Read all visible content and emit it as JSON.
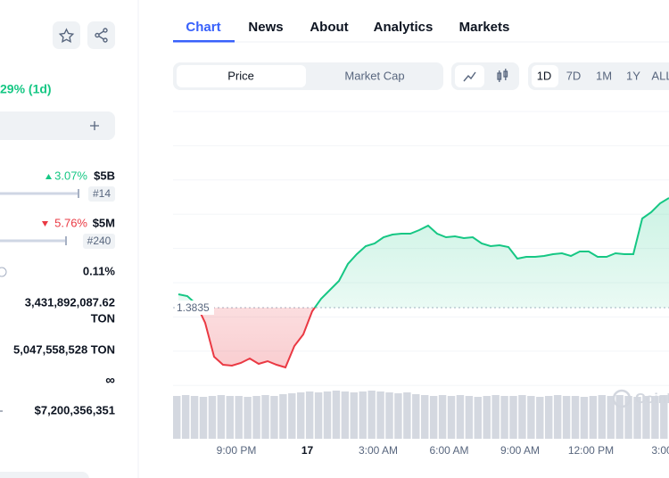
{
  "sidebar": {
    "change_1d": "29% (1d)",
    "rows": [
      {
        "change": "3.07%",
        "value": "$5B",
        "rank": "#14"
      },
      {
        "change": "5.76%",
        "value": "$5M",
        "rank": "#240"
      }
    ],
    "stats": [
      "0.11%",
      "3,431,892,087.62",
      "TON",
      "5,047,558,528 TON",
      "∞",
      "$7,200,356,351"
    ]
  },
  "tabs": [
    "Chart",
    "News",
    "About",
    "Analytics",
    "Markets"
  ],
  "controls": {
    "metric": [
      "Price",
      "Market Cap"
    ],
    "ranges": [
      "1D",
      "7D",
      "1M",
      "1Y",
      "ALL"
    ]
  },
  "chart_data": {
    "type": "line",
    "color": "#16c784",
    "down_color": "#ea3943",
    "volume_color": "#d4d8e0",
    "xticks": [
      "9:00 PM",
      "17",
      "3:00 AM",
      "6:00 AM",
      "9:00 AM",
      "12:00 PM",
      "3:00"
    ],
    "baseline": 1.3835,
    "ylim": [
      1.3541,
      1.4275
    ],
    "y2lim": [
      0,
      60
    ],
    "watermark": "CoinMarketCap",
    "values": [
      1.3865,
      1.3861,
      1.3843,
      1.3801,
      1.3725,
      1.3707,
      1.3705,
      1.3711,
      1.3721,
      1.3709,
      1.3715,
      1.3707,
      1.3701,
      1.3749,
      1.3775,
      1.3827,
      1.3855,
      1.3875,
      1.3895,
      1.3933,
      1.3955,
      1.3973,
      1.3979,
      1.3993,
      1.3999,
      1.4001,
      1.4001,
      1.4009,
      1.4019,
      1.4001,
      1.3993,
      1.3995,
      1.3991,
      1.3993,
      1.3979,
      1.3973,
      1.3975,
      1.3971,
      1.3945,
      1.3949,
      1.3949,
      1.3951,
      1.3955,
      1.3957,
      1.3951,
      1.3961,
      1.3961,
      1.3949,
      1.3949,
      1.3957,
      1.3955,
      1.3955,
      1.4035,
      1.4049,
      1.4069,
      1.4081
    ],
    "volume": [
      48,
      49,
      48,
      47,
      48,
      49,
      48,
      48,
      47,
      48,
      49,
      48,
      50,
      51,
      52,
      53,
      52,
      53,
      54,
      53,
      52,
      53,
      54,
      53,
      52,
      51,
      52,
      50,
      49,
      48,
      49,
      48,
      49,
      48,
      47,
      48,
      49,
      48,
      48,
      49,
      48,
      47,
      48,
      49,
      48,
      48,
      47,
      48,
      49,
      48,
      49,
      48,
      47,
      48,
      48,
      49
    ]
  }
}
